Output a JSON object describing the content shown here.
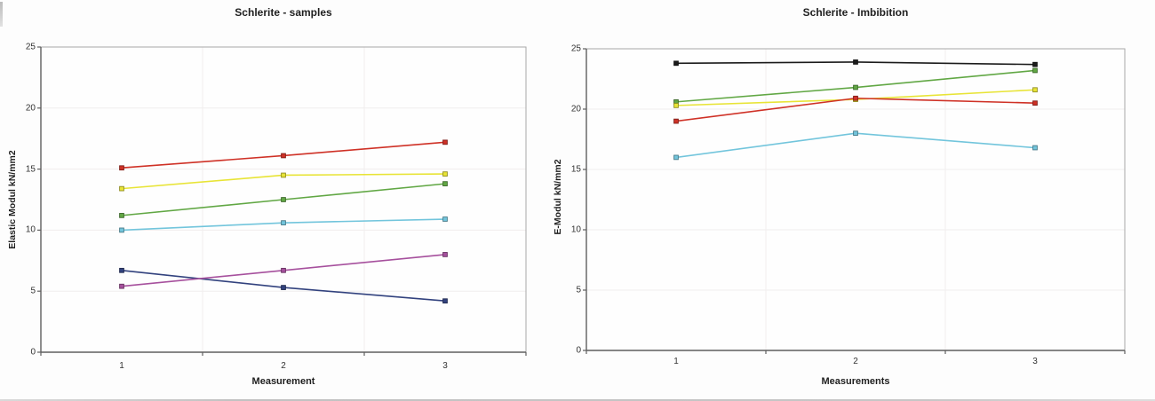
{
  "page": {
    "background_color": "#fdfdfd",
    "text_color": "#262626"
  },
  "chart_data": [
    {
      "type": "line",
      "title": "Schlerite - samples",
      "xlabel": "Measurement",
      "ylabel": "Elastic Modul kN/mm2",
      "x": [
        1,
        2,
        3
      ],
      "x_tick_labels": [
        "1",
        "2",
        "3"
      ],
      "ylim": [
        0,
        25
      ],
      "yticks": [
        0,
        5,
        10,
        15,
        20,
        25
      ],
      "grid": "faint horizontal lines at y ticks, faint vertical lines at category boundaries",
      "legend": "none",
      "marker": "square",
      "series": [
        {
          "name": "red-series",
          "color": "#cf3126",
          "values": [
            15.1,
            16.1,
            17.2
          ]
        },
        {
          "name": "yellow-series",
          "color": "#e8e436",
          "values": [
            13.4,
            14.5,
            14.6
          ]
        },
        {
          "name": "green-series",
          "color": "#61a744",
          "values": [
            11.2,
            12.5,
            13.8
          ]
        },
        {
          "name": "lightblue-series",
          "color": "#72c5dc",
          "values": [
            10.0,
            10.6,
            10.9
          ]
        },
        {
          "name": "darkblue-series",
          "color": "#32427e",
          "values": [
            6.7,
            5.3,
            4.2
          ]
        },
        {
          "name": "magenta-series",
          "color": "#a6509d",
          "values": [
            5.4,
            6.7,
            8.0
          ]
        }
      ]
    },
    {
      "type": "line",
      "title": "Schlerite - Imbibition",
      "xlabel": "Measurements",
      "ylabel": "E-Modul kN/mm2",
      "x": [
        1,
        2,
        3
      ],
      "x_tick_labels": [
        "1",
        "2",
        "3"
      ],
      "ylim": [
        0,
        25
      ],
      "yticks": [
        0,
        5,
        10,
        15,
        20,
        25
      ],
      "grid": "faint horizontal lines at y ticks, faint vertical lines at category boundaries",
      "legend": "none",
      "marker": "square",
      "series": [
        {
          "name": "black-series",
          "color": "#1b1b1b",
          "values": [
            23.8,
            23.9,
            23.7
          ]
        },
        {
          "name": "green-series",
          "color": "#61a744",
          "values": [
            20.6,
            21.8,
            23.2
          ]
        },
        {
          "name": "yellow-series",
          "color": "#e8e436",
          "values": [
            20.3,
            20.8,
            21.6
          ]
        },
        {
          "name": "red-series",
          "color": "#cf3126",
          "values": [
            19.0,
            20.9,
            20.5
          ]
        },
        {
          "name": "lightblue-series",
          "color": "#72c5dc",
          "values": [
            16.0,
            18.0,
            16.8
          ]
        }
      ]
    }
  ]
}
